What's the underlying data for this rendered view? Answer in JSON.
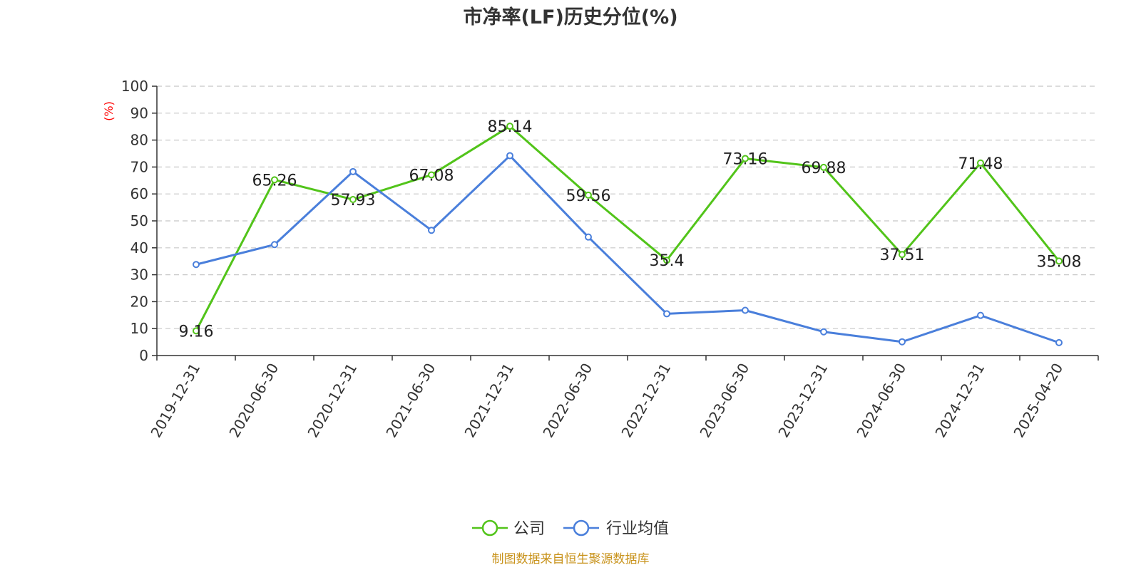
{
  "chart_data": {
    "type": "line",
    "title": "市净率(LF)历史分位(%)",
    "ylabel": "(%)",
    "ylim": [
      0,
      100
    ],
    "yticks": [
      0,
      10,
      20,
      30,
      40,
      50,
      60,
      70,
      80,
      90,
      100
    ],
    "categories": [
      "2019-12-31",
      "2020-06-30",
      "2020-12-31",
      "2021-06-30",
      "2021-12-31",
      "2022-06-30",
      "2022-12-31",
      "2023-06-30",
      "2023-12-31",
      "2024-06-30",
      "2024-12-31",
      "2025-04-20"
    ],
    "grid": true,
    "legend_position": "bottom",
    "series": [
      {
        "name": "公司",
        "color": "#52c41a",
        "values": [
          9.16,
          65.26,
          57.93,
          67.08,
          85.14,
          59.56,
          35.4,
          73.16,
          69.88,
          37.51,
          71.48,
          35.08
        ],
        "labels": [
          "9.16",
          "65.26",
          "57.93",
          "67.08",
          "85.14",
          "59.56",
          "35.4",
          "73.16",
          "69.88",
          "37.51",
          "71.48",
          "35.08"
        ]
      },
      {
        "name": "行业均值",
        "color": "#4a7fdb",
        "values": [
          33.8,
          41.2,
          68.3,
          46.5,
          74.2,
          44.0,
          15.5,
          16.8,
          8.8,
          5.1,
          14.9,
          4.8
        ]
      }
    ]
  },
  "source": "制图数据来自恒生聚源数据库"
}
